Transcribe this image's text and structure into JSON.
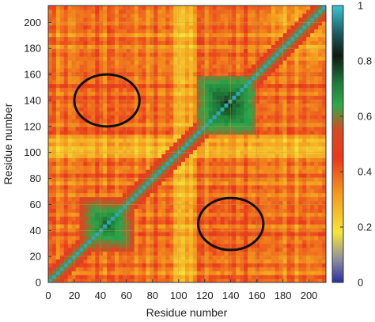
{
  "chart_data": {
    "type": "heatmap",
    "description_matrix": "symmetric residue contact/correlation map, 0..213 x 0..213",
    "title": "",
    "xlabel": "Residue number",
    "ylabel": "Residue number",
    "xlim": [
      0,
      213
    ],
    "ylim": [
      0,
      213
    ],
    "x_ticks": [
      0,
      20,
      40,
      60,
      80,
      100,
      120,
      140,
      160,
      180,
      200
    ],
    "y_ticks": [
      0,
      20,
      40,
      60,
      80,
      100,
      120,
      140,
      160,
      180,
      200
    ],
    "colorbar": {
      "range": [
        0,
        1
      ],
      "ticks": [
        0,
        0.2,
        0.4,
        0.6,
        0.8,
        1
      ],
      "tick_labels": [
        "0",
        "0.2",
        "0.4",
        "0.6",
        "0.8",
        "1"
      ],
      "colors": [
        "#2b2f9e",
        "#f5e53a",
        "#f59a1e",
        "#e8381e",
        "#2ea84a",
        "#0d1a12",
        "#39c6d3"
      ]
    },
    "high_blocks": [
      {
        "x": [
          25,
          65
        ],
        "y": [
          25,
          65
        ],
        "value": 0.75
      },
      {
        "x": [
          115,
          160
        ],
        "y": [
          115,
          160
        ],
        "value": 0.8
      }
    ],
    "annotations": [
      {
        "type": "ellipse",
        "center": [
          45,
          140
        ],
        "rx": 25,
        "ry": 20
      },
      {
        "type": "ellipse",
        "center": [
          140,
          45
        ],
        "rx": 25,
        "ry": 20
      }
    ],
    "grid": true
  }
}
